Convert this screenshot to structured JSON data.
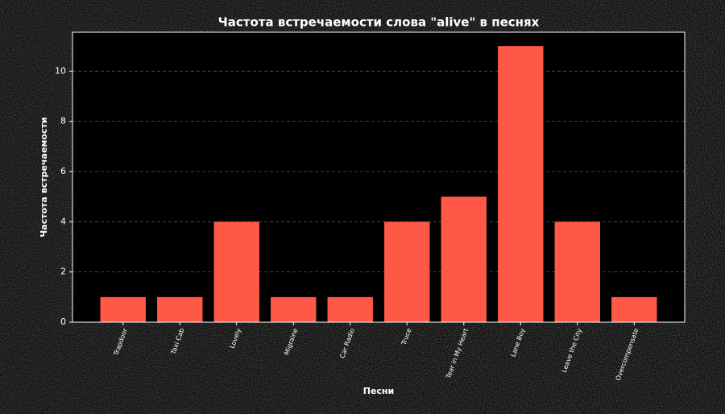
{
  "chart_data": {
    "type": "bar",
    "title": "Частота встречаемости слова \"alive\" в песнях",
    "x_label": "Песни",
    "y_label": "Частота встречаемости",
    "categories": [
      "Trapdoor",
      "Taxi Cab",
      "Lovely",
      "Migraine",
      "Car Radio",
      "Truce",
      "Tear in My Heart",
      "Lane Boy",
      "Leave the City",
      "Overcompensate"
    ],
    "values": [
      1,
      1,
      4,
      1,
      1,
      4,
      5,
      11,
      4,
      1
    ],
    "color": "#ff5847",
    "ylim": [
      0,
      11.55
    ],
    "yticks": [
      0,
      2,
      4,
      6,
      8,
      10
    ],
    "grid": true
  }
}
